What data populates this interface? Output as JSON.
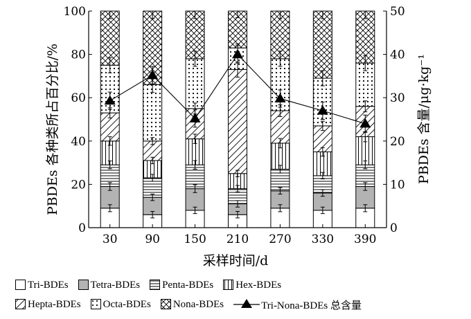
{
  "chart_data": {
    "type": "bar",
    "stacked": true,
    "xlabel": "采样时间/d",
    "ylabel": "PBDEs 各种类所占百分比/%",
    "ylabel_right": "PBDEs 含量/μg·kg⁻¹",
    "categories": [
      "30",
      "90",
      "150",
      "210",
      "270",
      "330",
      "390"
    ],
    "ylim": [
      0,
      100
    ],
    "yticks": [
      "0",
      "20",
      "40",
      "60",
      "80",
      "100"
    ],
    "ylim_right": [
      0,
      50
    ],
    "yticks_right": [
      "0",
      "10",
      "20",
      "30",
      "40",
      "50"
    ],
    "series": [
      {
        "name": "Tri-BDEs",
        "pattern": "blank",
        "values": [
          9,
          6,
          8,
          6,
          9,
          8,
          9
        ]
      },
      {
        "name": "Tetra-BDEs",
        "pattern": "gray",
        "values": [
          10,
          8,
          10,
          5,
          8,
          8,
          10
        ]
      },
      {
        "name": "Penta-BDEs",
        "pattern": "hlines",
        "values": [
          10,
          9,
          11,
          7,
          10,
          8,
          10
        ]
      },
      {
        "name": "Hex-BDEs",
        "pattern": "vlines",
        "values": [
          11,
          8,
          12,
          7,
          12,
          11,
          13
        ]
      },
      {
        "name": "Hepta-BDEs",
        "pattern": "diagonal",
        "values": [
          13,
          9,
          14,
          48,
          15,
          12,
          14
        ]
      },
      {
        "name": "Octa-BDEs",
        "pattern": "dots",
        "values": [
          22,
          26,
          23,
          10,
          24,
          22,
          20
        ]
      },
      {
        "name": "Nona-BDEs",
        "pattern": "crosshatch",
        "values": [
          25,
          34,
          22,
          17,
          22,
          31,
          24
        ]
      }
    ],
    "line": {
      "name": "Tri-Nona-BDEs 总含量",
      "axis": "right",
      "values": [
        29.3,
        35.2,
        25.2,
        40.0,
        29.8,
        27.0,
        24.0
      ]
    },
    "legend_position": "bottom"
  }
}
